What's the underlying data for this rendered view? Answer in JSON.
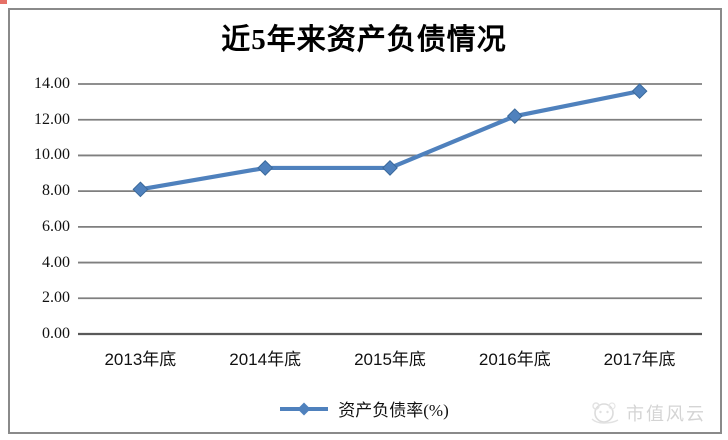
{
  "chart_data": {
    "type": "line",
    "title": "近5年来资产负债情况",
    "categories": [
      "2013年底",
      "2014年底",
      "2015年底",
      "2016年底",
      "2017年底"
    ],
    "series": [
      {
        "name": "资产负债率(%)",
        "values": [
          8.1,
          9.3,
          9.3,
          12.2,
          13.6
        ]
      }
    ],
    "xlabel": "",
    "ylabel": "",
    "ylim": [
      0,
      14
    ],
    "ytick_labels": [
      "0.00",
      "2.00",
      "4.00",
      "6.00",
      "8.00",
      "10.00",
      "12.00",
      "14.00"
    ],
    "grid": true,
    "legend_position": "bottom",
    "marker": "diamond",
    "line_color": "#4F81BD",
    "marker_color": "#4F81BD",
    "gridline_color": "#7f7f7f",
    "axis_line_color": "#595959",
    "frame_border_color": "#8a8a8a"
  },
  "legend": {
    "label": "资产负债率(%)"
  },
  "watermark": {
    "text": "市值风云",
    "icon": "panda-cloud-logo",
    "color": "#d4d4d4"
  }
}
